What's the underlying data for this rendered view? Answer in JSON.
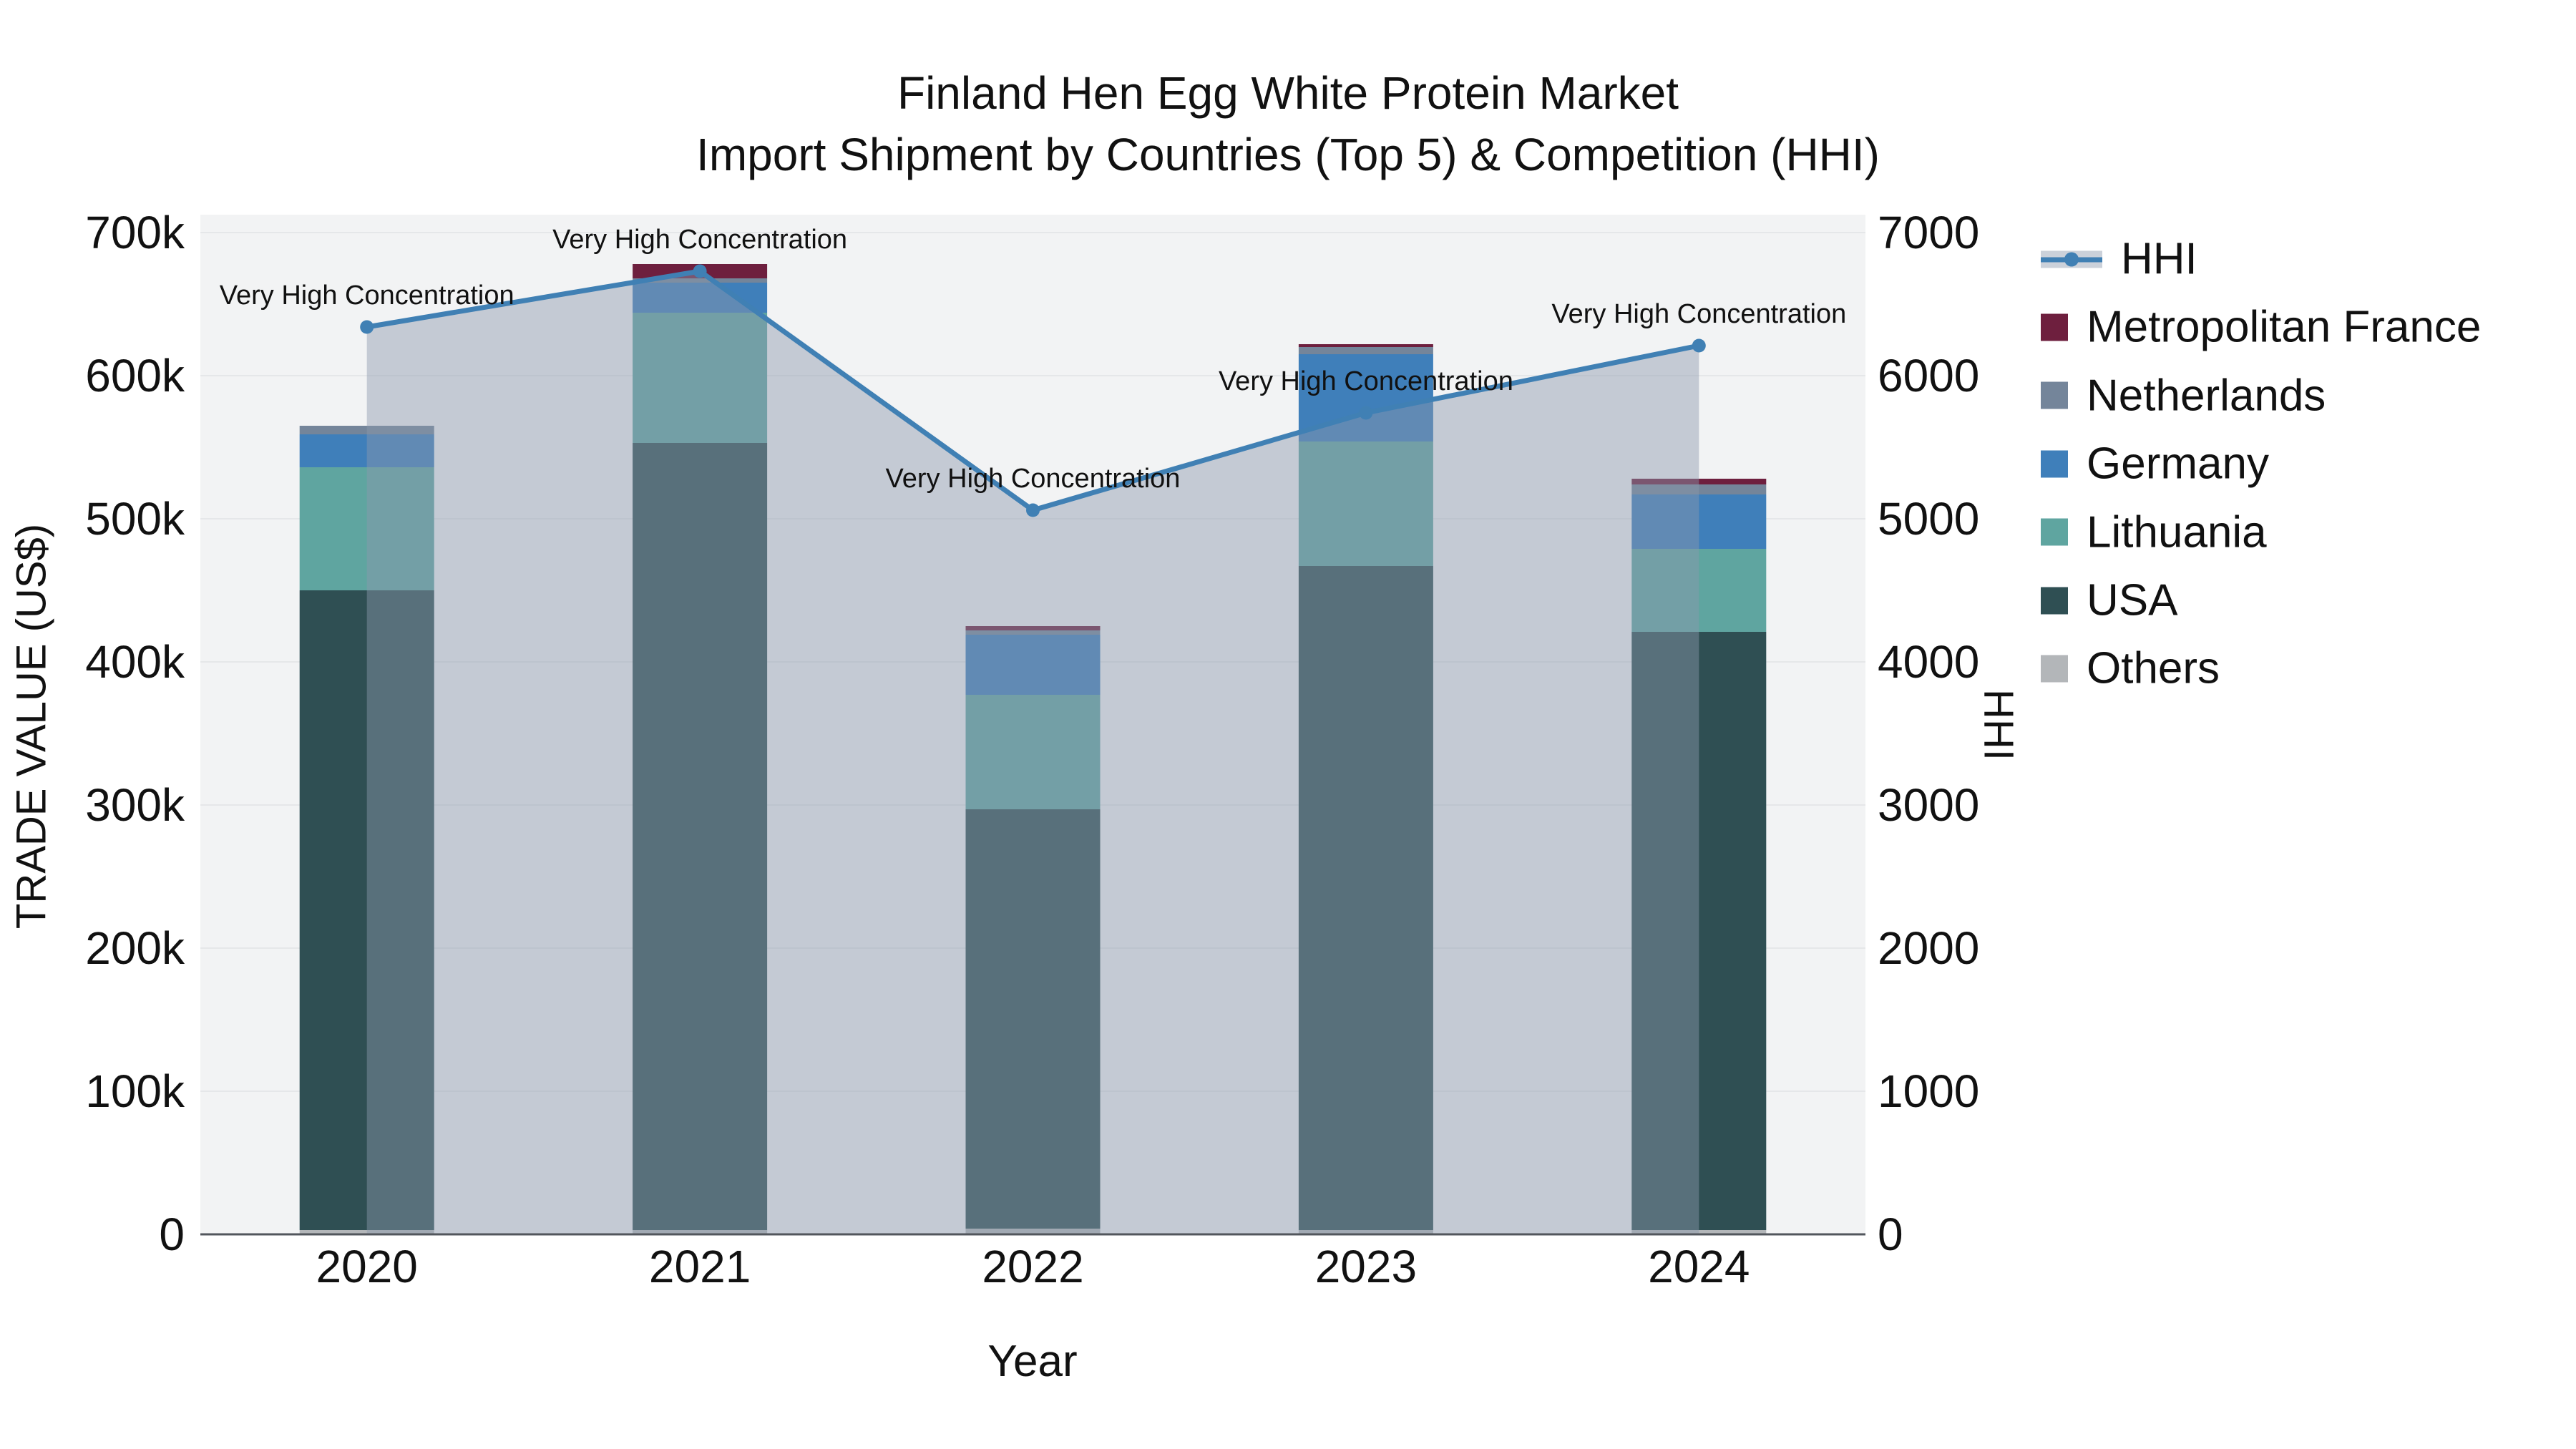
{
  "chart_data": {
    "type": "combo-stacked-bar-line",
    "title": "Finland Hen Egg White Protein Market",
    "subtitle": "Import Shipment by Countries (Top 5) & Competition (HHI)",
    "xlabel": "Year",
    "ylabel_left": "TRADE VALUE (US$)",
    "ylabel_right": "HHI",
    "categories": [
      "2020",
      "2021",
      "2022",
      "2023",
      "2024"
    ],
    "yaxis_left": {
      "ticks": [
        "0",
        "100k",
        "200k",
        "300k",
        "400k",
        "500k",
        "600k",
        "700k"
      ],
      "range": [
        0,
        712500
      ],
      "grid": true
    },
    "yaxis_right": {
      "ticks": [
        "0",
        "1000",
        "2000",
        "3000",
        "4000",
        "5000",
        "6000",
        "7000"
      ],
      "range": [
        0,
        7125
      ]
    },
    "series": [
      {
        "name": "Others",
        "color": "#b3b6b9",
        "values": [
          3000,
          3000,
          4000,
          3000,
          3000
        ]
      },
      {
        "name": "USA",
        "color": "#2f4f53",
        "values": [
          447000,
          550000,
          293000,
          464000,
          418000
        ]
      },
      {
        "name": "Lithuania",
        "color": "#5fa5a0",
        "values": [
          86000,
          91000,
          80000,
          87000,
          58000
        ]
      },
      {
        "name": "Germany",
        "color": "#3f7fba",
        "values": [
          23000,
          21000,
          42000,
          61000,
          38000
        ]
      },
      {
        "name": "Netherlands",
        "color": "#74859a",
        "values": [
          6000,
          3000,
          3000,
          5000,
          7000
        ]
      },
      {
        "name": "Metropolitan France",
        "color": "#6e1f3e",
        "values": [
          0,
          10000,
          3000,
          2000,
          4000
        ]
      }
    ],
    "line_series": {
      "name": "HHI",
      "color": "#4080b4",
      "area_color": "rgba(140,153,173,0.45)",
      "values": [
        6340,
        6730,
        5060,
        5740,
        6210
      ]
    },
    "annotations": [
      {
        "text": "Very High Concentration",
        "category": "2020"
      },
      {
        "text": "Very High Concentration",
        "category": "2021"
      },
      {
        "text": "Very High Concentration",
        "category": "2022"
      },
      {
        "text": "Very High Concentration",
        "category": "2023"
      },
      {
        "text": "Very High Concentration",
        "category": "2024"
      }
    ],
    "legend_position": "right",
    "colors": {
      "plot_background": "#f2f3f4",
      "grid": "#e5e7e9",
      "axis_line": "#52565c",
      "text": "#111111"
    }
  }
}
